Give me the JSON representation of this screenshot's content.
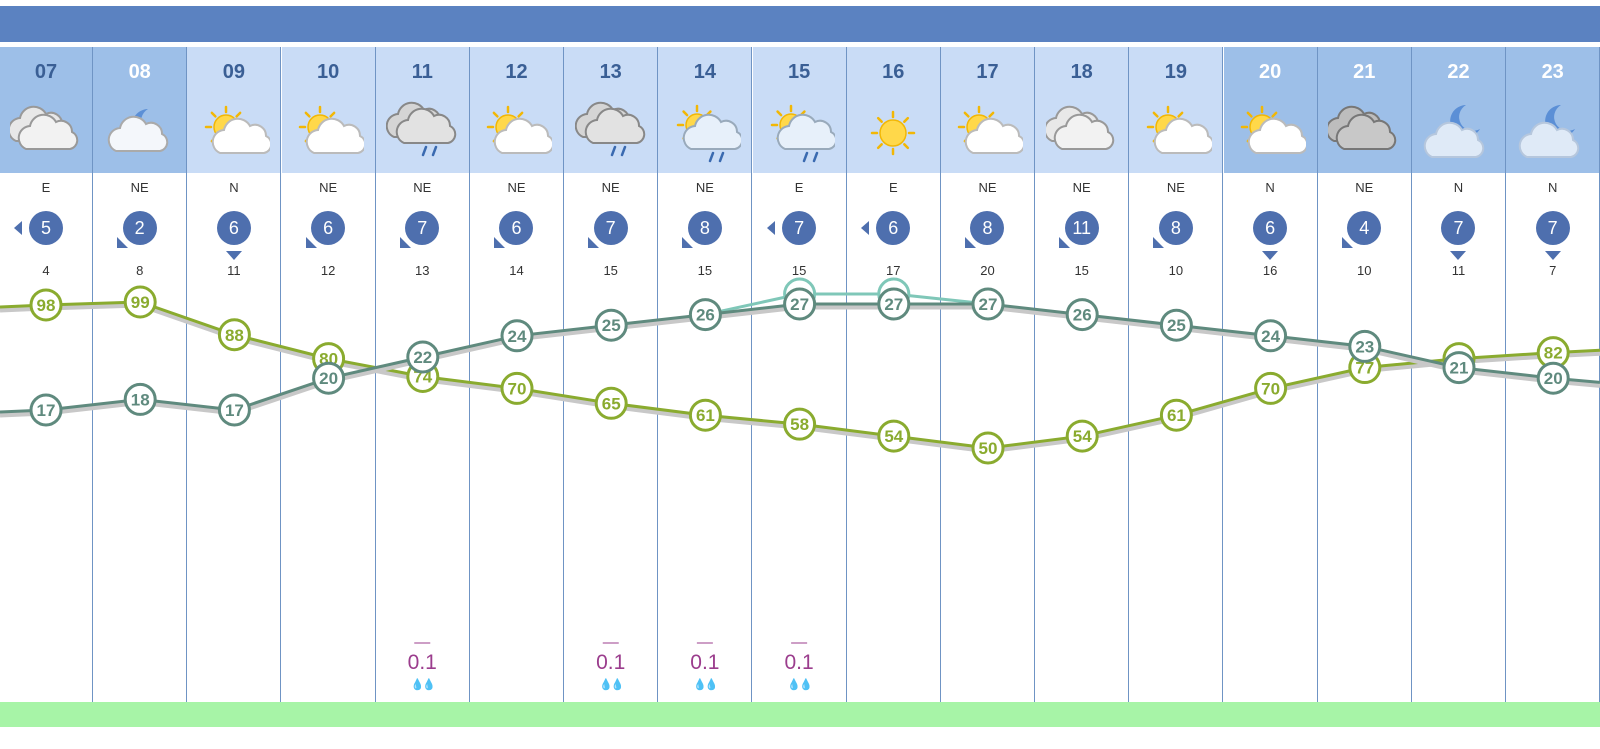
{
  "chart_data": {
    "type": "line",
    "x": [
      "07",
      "08",
      "09",
      "10",
      "11",
      "12",
      "13",
      "14",
      "15",
      "16",
      "17",
      "18",
      "19",
      "20",
      "21",
      "22",
      "23"
    ],
    "night": [
      true,
      true,
      false,
      false,
      false,
      false,
      false,
      false,
      false,
      false,
      false,
      false,
      false,
      true,
      true,
      true,
      true
    ],
    "light_hour": [
      false,
      true,
      false,
      false,
      false,
      false,
      false,
      false,
      false,
      false,
      false,
      false,
      false,
      true,
      true,
      true,
      true
    ],
    "weather_icons": [
      "cloudy-icon",
      "moon-cloud-icon",
      "sun-cloud-icon",
      "sun-cloud-icon",
      "rain-cloud-icon",
      "sun-cloud-icon",
      "rain-cloud-icon",
      "sun-rain-icon",
      "sun-rain-icon",
      "sun-icon",
      "sun-cloud-icon",
      "cloudy-icon",
      "sun-cloud-icon",
      "sun-cloud-icon",
      "dark-cloud-icon",
      "moon-icon",
      "moon-icon"
    ],
    "wind_direction": [
      "E",
      "NE",
      "N",
      "NE",
      "NE",
      "NE",
      "NE",
      "NE",
      "E",
      "E",
      "NE",
      "NE",
      "NE",
      "N",
      "NE",
      "N",
      "N"
    ],
    "wind_speed": [
      "5",
      "2",
      "6",
      "6",
      "7",
      "6",
      "7",
      "8",
      "7",
      "6",
      "8",
      "11",
      "8",
      "6",
      "4",
      "7",
      "7"
    ],
    "wind_gust": [
      "4",
      "8",
      "11",
      "12",
      "13",
      "14",
      "15",
      "15",
      "15",
      "17",
      "20",
      "15",
      "10",
      "16",
      "10",
      "11",
      "7"
    ],
    "series": [
      {
        "key": "humidity",
        "values": [
          98,
          99,
          88,
          80,
          74,
          70,
          65,
          61,
          58,
          54,
          50,
          54,
          61,
          70,
          77,
          80,
          82
        ],
        "color": "#8aab2f"
      },
      {
        "key": "temperature",
        "values": [
          17,
          18,
          17,
          20,
          22,
          24,
          25,
          26,
          27,
          27,
          27,
          26,
          25,
          24,
          23,
          21,
          20
        ],
        "color": "#5f8a7e"
      },
      {
        "key": "feels_like",
        "values": [
          null,
          null,
          null,
          null,
          null,
          null,
          null,
          null,
          27,
          27,
          null,
          null,
          null,
          null,
          null,
          null,
          null
        ],
        "color": "#7fc7b8"
      }
    ],
    "precipitation": [
      "",
      "",
      "",
      "",
      "0.1",
      "",
      "0.1",
      "0.1",
      "0.1",
      "",
      "",
      "",
      "",
      "",
      "",
      "",
      ""
    ],
    "precip_dash": "—",
    "colors": {
      "header_bar": "#5b82c1",
      "day_bg": "#c9dcf6",
      "night_bg": "#9dbfe8",
      "wind_circle": "#4e6fae",
      "rain_text": "#9b3d8d",
      "footer": "#a7f4a7"
    }
  }
}
